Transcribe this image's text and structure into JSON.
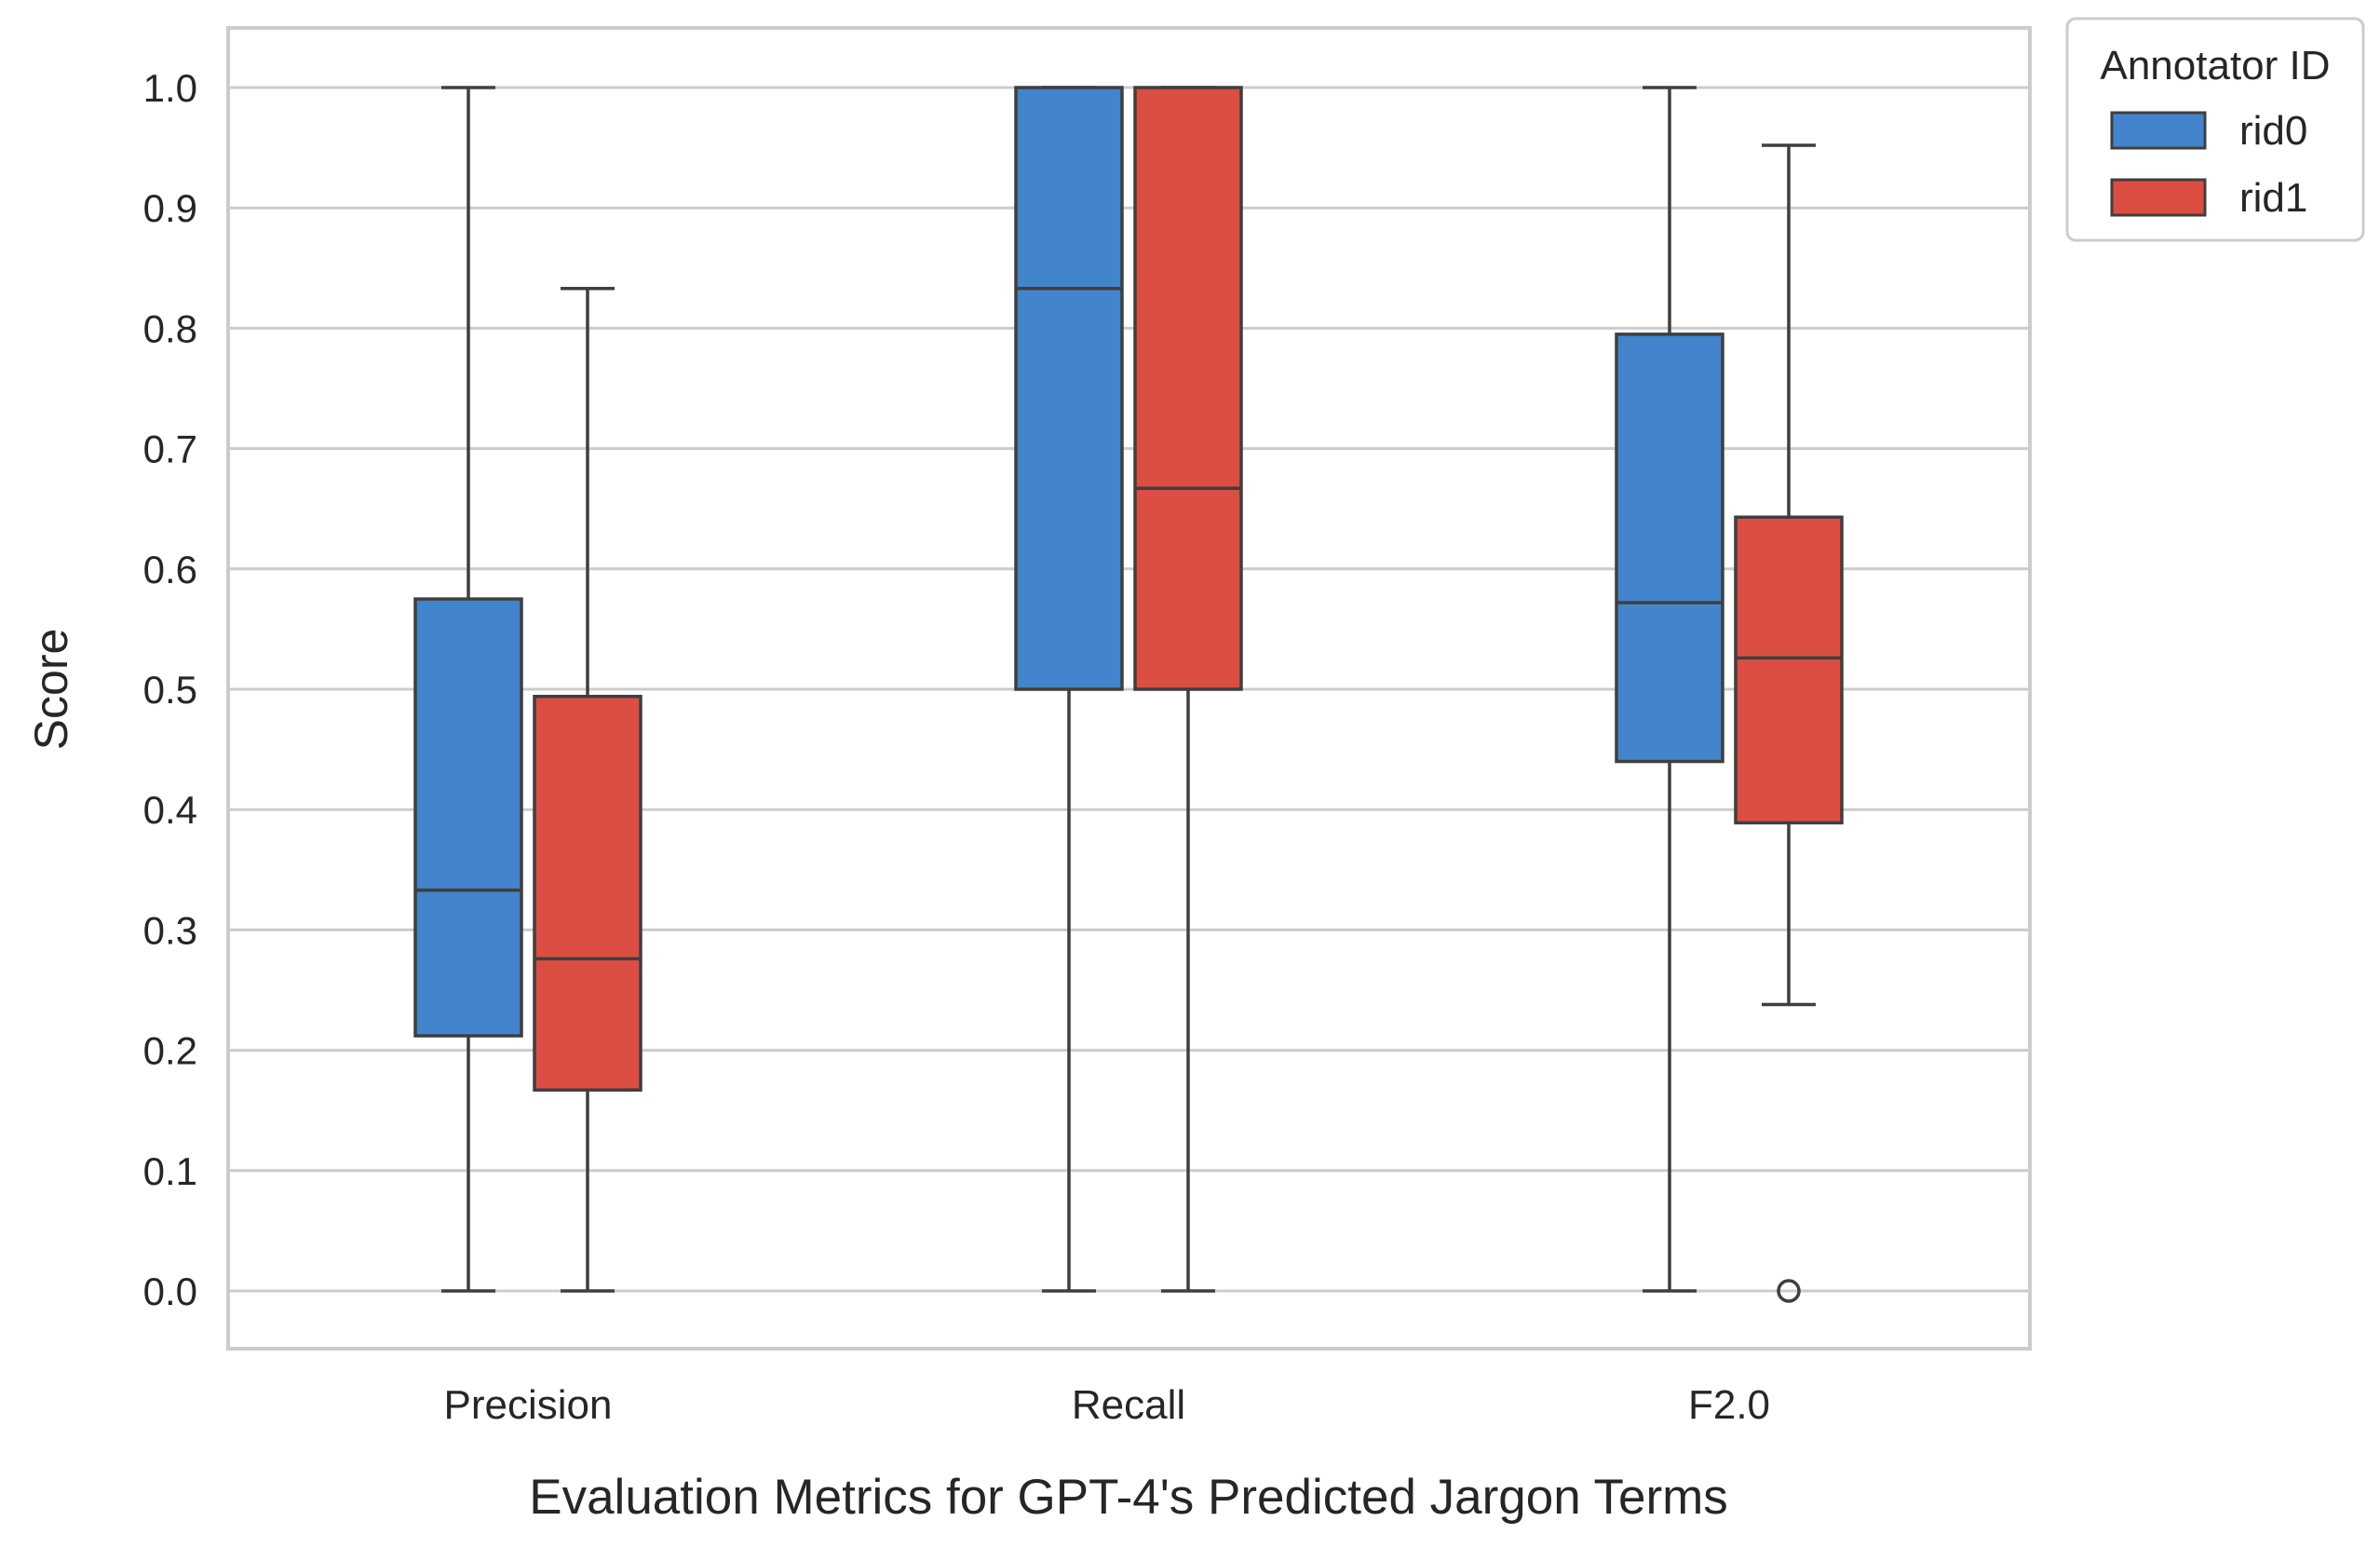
{
  "chart_data": {
    "type": "box",
    "xlabel": "Evaluation Metrics for GPT-4's Predicted Jargon Terms",
    "ylabel": "Score",
    "ylim": [
      -0.05,
      1.05
    ],
    "yticks": [
      "0.0",
      "0.1",
      "0.2",
      "0.3",
      "0.4",
      "0.5",
      "0.6",
      "0.7",
      "0.8",
      "0.9",
      "1.0"
    ],
    "categories": [
      "Precision",
      "Recall",
      "F2.0"
    ],
    "grid": true,
    "legend": {
      "title": "Annotator ID",
      "placement": "outside-top-right"
    },
    "series": [
      {
        "name": "rid0",
        "color": "#4285CC",
        "boxes": [
          {
            "whisker_low": 0.0,
            "q1": 0.212,
            "median": 0.333,
            "q3": 0.575,
            "whisker_high": 1.0,
            "outliers": []
          },
          {
            "whisker_low": 0.0,
            "q1": 0.5,
            "median": 0.833,
            "q3": 1.0,
            "whisker_high": 1.0,
            "outliers": []
          },
          {
            "whisker_low": 0.0,
            "q1": 0.44,
            "median": 0.572,
            "q3": 0.795,
            "whisker_high": 1.0,
            "outliers": []
          }
        ]
      },
      {
        "name": "rid1",
        "color": "#DB4E41",
        "boxes": [
          {
            "whisker_low": 0.0,
            "q1": 0.167,
            "median": 0.276,
            "q3": 0.494,
            "whisker_high": 0.833,
            "outliers": []
          },
          {
            "whisker_low": 0.0,
            "q1": 0.5,
            "median": 0.667,
            "q3": 1.0,
            "whisker_high": 1.0,
            "outliers": []
          },
          {
            "whisker_low": 0.238,
            "q1": 0.389,
            "median": 0.526,
            "q3": 0.643,
            "whisker_high": 0.952,
            "outliers": [
              0.0
            ]
          }
        ]
      }
    ]
  }
}
